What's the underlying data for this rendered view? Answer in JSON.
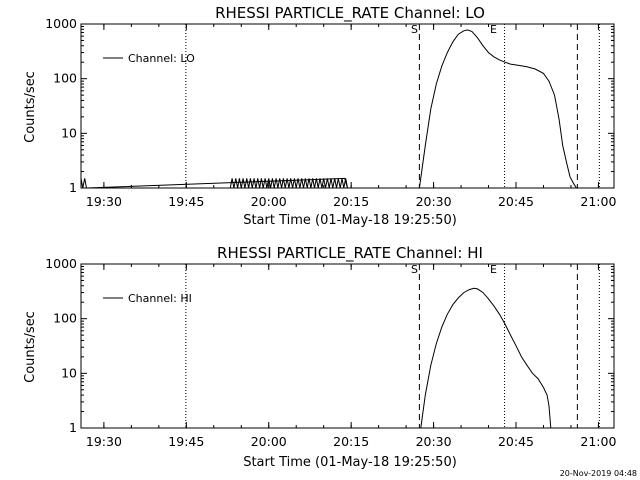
{
  "chart_data": [
    {
      "type": "line",
      "title": "RHESSI PARTICLE_RATE Channel: LO",
      "xlabel": "Start Time (01-May-18 19:25:50)",
      "ylabel": "Counts/sec",
      "yscale": "log",
      "ylim": [
        1,
        1000
      ],
      "xlim_minutes_after_start": [
        0,
        97
      ],
      "yticks": [
        "1",
        "10",
        "100",
        "1000"
      ],
      "xticks": [
        "19:30",
        "19:45",
        "20:00",
        "20:15",
        "20:30",
        "20:45",
        "21:00"
      ],
      "legend": {
        "label": "Channel: LO",
        "position": "top-left"
      },
      "markers": {
        "start": "S",
        "end": "E"
      },
      "dotted_times": [
        "19:44:55",
        "20:42:55",
        "21:00:10"
      ],
      "dashed_times": [
        "20:27:25",
        "20:56:10"
      ],
      "series": [
        {
          "name": "Channel: LO",
          "x": [
            "19:25:50",
            "19:26:10",
            "19:26:30",
            "19:26:50",
            "20:13:50",
            "20:14:20",
            "20:18:50",
            "20:19:20",
            "20:19:40",
            "20:20:00",
            "20:21:00",
            "20:22:00",
            "20:23:00",
            "20:25:00",
            "20:27:25",
            "20:28:30",
            "20:29:30",
            "20:30:30",
            "20:31:30",
            "20:32:30",
            "20:33:30",
            "20:34:30",
            "20:35:30",
            "20:36:10",
            "20:37:00",
            "20:38:00",
            "20:39:00",
            "20:40:00",
            "20:41:00",
            "20:42:00",
            "20:43:00",
            "20:44:00",
            "20:45:30",
            "20:47:00",
            "20:48:30",
            "20:50:00",
            "20:51:00",
            "20:52:00",
            "20:52:50",
            "20:53:30",
            "20:54:10",
            "20:54:50",
            "20:55:30",
            "20:56:00"
          ],
          "y": [
            1.5,
            1,
            1.5,
            1,
            1.5,
            1,
            1,
            1,
            1,
            1,
            1,
            1,
            1,
            1,
            1,
            6,
            28,
            80,
            170,
            300,
            470,
            650,
            750,
            780,
            730,
            560,
            400,
            300,
            250,
            220,
            200,
            185,
            175,
            165,
            150,
            125,
            90,
            50,
            18,
            6,
            3,
            1.6,
            1.2,
            1
          ]
        }
      ],
      "noise_band": {
        "from": "19:53:00",
        "to": "20:14:30",
        "values": [
          1,
          1.5
        ]
      }
    },
    {
      "type": "line",
      "title": "RHESSI PARTICLE_RATE Channel: HI",
      "xlabel": "Start Time (01-May-18 19:25:50)",
      "ylabel": "Counts/sec",
      "yscale": "log",
      "ylim": [
        1,
        1000
      ],
      "xlim_minutes_after_start": [
        0,
        97
      ],
      "yticks": [
        "1",
        "10",
        "100",
        "1000"
      ],
      "xticks": [
        "19:30",
        "19:45",
        "20:00",
        "20:15",
        "20:30",
        "20:45",
        "21:00"
      ],
      "legend": {
        "label": "Channel: HI",
        "position": "top-left"
      },
      "markers": {
        "start": "S",
        "end": "E"
      },
      "dotted_times": [
        "19:44:55",
        "20:42:55",
        "21:00:10"
      ],
      "dashed_times": [
        "20:27:25",
        "20:56:10"
      ],
      "series": [
        {
          "name": "Channel: HI",
          "x": [
            "20:27:40",
            "20:28:30",
            "20:29:30",
            "20:30:30",
            "20:31:30",
            "20:32:30",
            "20:33:30",
            "20:34:30",
            "20:35:30",
            "20:36:30",
            "20:37:20",
            "20:38:00",
            "20:39:00",
            "20:40:00",
            "20:41:00",
            "20:42:00",
            "20:43:00",
            "20:44:00",
            "20:45:00",
            "20:46:00",
            "20:47:00",
            "20:48:00",
            "20:49:00",
            "20:50:00",
            "20:50:40",
            "20:51:00",
            "20:51:20"
          ],
          "y": [
            1,
            4,
            14,
            35,
            70,
            120,
            180,
            240,
            300,
            340,
            360,
            350,
            300,
            230,
            170,
            120,
            80,
            50,
            32,
            20,
            14,
            10,
            8,
            5.5,
            4,
            2.5,
            1
          ]
        }
      ]
    }
  ],
  "footer": {
    "timestamp": "20-Nov-2019 04:48"
  }
}
